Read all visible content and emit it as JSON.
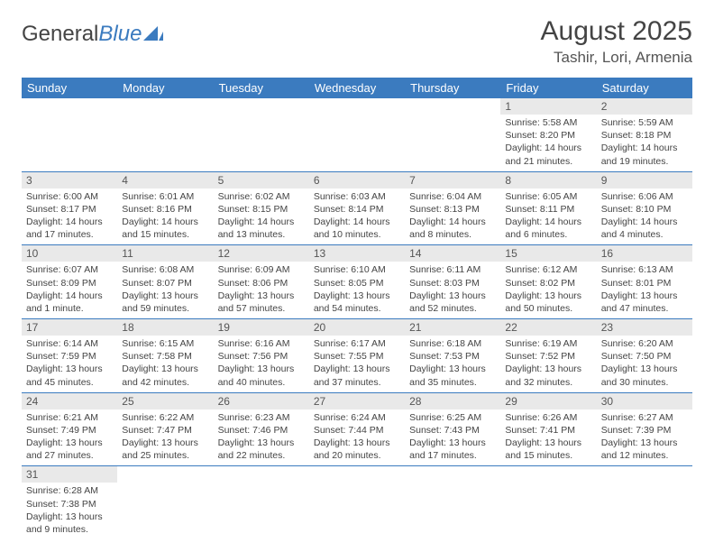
{
  "logo": {
    "text1": "General",
    "text2": "Blue"
  },
  "title": "August 2025",
  "location": "Tashir, Lori, Armenia",
  "colors": {
    "accent": "#3b7bbf",
    "daynum_bg": "#e9e9e9"
  },
  "day_headers": [
    "Sunday",
    "Monday",
    "Tuesday",
    "Wednesday",
    "Thursday",
    "Friday",
    "Saturday"
  ],
  "weeks": [
    [
      {
        "n": "",
        "sr": "",
        "ss": "",
        "dl": ""
      },
      {
        "n": "",
        "sr": "",
        "ss": "",
        "dl": ""
      },
      {
        "n": "",
        "sr": "",
        "ss": "",
        "dl": ""
      },
      {
        "n": "",
        "sr": "",
        "ss": "",
        "dl": ""
      },
      {
        "n": "",
        "sr": "",
        "ss": "",
        "dl": ""
      },
      {
        "n": "1",
        "sr": "Sunrise: 5:58 AM",
        "ss": "Sunset: 8:20 PM",
        "dl": "Daylight: 14 hours and 21 minutes."
      },
      {
        "n": "2",
        "sr": "Sunrise: 5:59 AM",
        "ss": "Sunset: 8:18 PM",
        "dl": "Daylight: 14 hours and 19 minutes."
      }
    ],
    [
      {
        "n": "3",
        "sr": "Sunrise: 6:00 AM",
        "ss": "Sunset: 8:17 PM",
        "dl": "Daylight: 14 hours and 17 minutes."
      },
      {
        "n": "4",
        "sr": "Sunrise: 6:01 AM",
        "ss": "Sunset: 8:16 PM",
        "dl": "Daylight: 14 hours and 15 minutes."
      },
      {
        "n": "5",
        "sr": "Sunrise: 6:02 AM",
        "ss": "Sunset: 8:15 PM",
        "dl": "Daylight: 14 hours and 13 minutes."
      },
      {
        "n": "6",
        "sr": "Sunrise: 6:03 AM",
        "ss": "Sunset: 8:14 PM",
        "dl": "Daylight: 14 hours and 10 minutes."
      },
      {
        "n": "7",
        "sr": "Sunrise: 6:04 AM",
        "ss": "Sunset: 8:13 PM",
        "dl": "Daylight: 14 hours and 8 minutes."
      },
      {
        "n": "8",
        "sr": "Sunrise: 6:05 AM",
        "ss": "Sunset: 8:11 PM",
        "dl": "Daylight: 14 hours and 6 minutes."
      },
      {
        "n": "9",
        "sr": "Sunrise: 6:06 AM",
        "ss": "Sunset: 8:10 PM",
        "dl": "Daylight: 14 hours and 4 minutes."
      }
    ],
    [
      {
        "n": "10",
        "sr": "Sunrise: 6:07 AM",
        "ss": "Sunset: 8:09 PM",
        "dl": "Daylight: 14 hours and 1 minute."
      },
      {
        "n": "11",
        "sr": "Sunrise: 6:08 AM",
        "ss": "Sunset: 8:07 PM",
        "dl": "Daylight: 13 hours and 59 minutes."
      },
      {
        "n": "12",
        "sr": "Sunrise: 6:09 AM",
        "ss": "Sunset: 8:06 PM",
        "dl": "Daylight: 13 hours and 57 minutes."
      },
      {
        "n": "13",
        "sr": "Sunrise: 6:10 AM",
        "ss": "Sunset: 8:05 PM",
        "dl": "Daylight: 13 hours and 54 minutes."
      },
      {
        "n": "14",
        "sr": "Sunrise: 6:11 AM",
        "ss": "Sunset: 8:03 PM",
        "dl": "Daylight: 13 hours and 52 minutes."
      },
      {
        "n": "15",
        "sr": "Sunrise: 6:12 AM",
        "ss": "Sunset: 8:02 PM",
        "dl": "Daylight: 13 hours and 50 minutes."
      },
      {
        "n": "16",
        "sr": "Sunrise: 6:13 AM",
        "ss": "Sunset: 8:01 PM",
        "dl": "Daylight: 13 hours and 47 minutes."
      }
    ],
    [
      {
        "n": "17",
        "sr": "Sunrise: 6:14 AM",
        "ss": "Sunset: 7:59 PM",
        "dl": "Daylight: 13 hours and 45 minutes."
      },
      {
        "n": "18",
        "sr": "Sunrise: 6:15 AM",
        "ss": "Sunset: 7:58 PM",
        "dl": "Daylight: 13 hours and 42 minutes."
      },
      {
        "n": "19",
        "sr": "Sunrise: 6:16 AM",
        "ss": "Sunset: 7:56 PM",
        "dl": "Daylight: 13 hours and 40 minutes."
      },
      {
        "n": "20",
        "sr": "Sunrise: 6:17 AM",
        "ss": "Sunset: 7:55 PM",
        "dl": "Daylight: 13 hours and 37 minutes."
      },
      {
        "n": "21",
        "sr": "Sunrise: 6:18 AM",
        "ss": "Sunset: 7:53 PM",
        "dl": "Daylight: 13 hours and 35 minutes."
      },
      {
        "n": "22",
        "sr": "Sunrise: 6:19 AM",
        "ss": "Sunset: 7:52 PM",
        "dl": "Daylight: 13 hours and 32 minutes."
      },
      {
        "n": "23",
        "sr": "Sunrise: 6:20 AM",
        "ss": "Sunset: 7:50 PM",
        "dl": "Daylight: 13 hours and 30 minutes."
      }
    ],
    [
      {
        "n": "24",
        "sr": "Sunrise: 6:21 AM",
        "ss": "Sunset: 7:49 PM",
        "dl": "Daylight: 13 hours and 27 minutes."
      },
      {
        "n": "25",
        "sr": "Sunrise: 6:22 AM",
        "ss": "Sunset: 7:47 PM",
        "dl": "Daylight: 13 hours and 25 minutes."
      },
      {
        "n": "26",
        "sr": "Sunrise: 6:23 AM",
        "ss": "Sunset: 7:46 PM",
        "dl": "Daylight: 13 hours and 22 minutes."
      },
      {
        "n": "27",
        "sr": "Sunrise: 6:24 AM",
        "ss": "Sunset: 7:44 PM",
        "dl": "Daylight: 13 hours and 20 minutes."
      },
      {
        "n": "28",
        "sr": "Sunrise: 6:25 AM",
        "ss": "Sunset: 7:43 PM",
        "dl": "Daylight: 13 hours and 17 minutes."
      },
      {
        "n": "29",
        "sr": "Sunrise: 6:26 AM",
        "ss": "Sunset: 7:41 PM",
        "dl": "Daylight: 13 hours and 15 minutes."
      },
      {
        "n": "30",
        "sr": "Sunrise: 6:27 AM",
        "ss": "Sunset: 7:39 PM",
        "dl": "Daylight: 13 hours and 12 minutes."
      }
    ],
    [
      {
        "n": "31",
        "sr": "Sunrise: 6:28 AM",
        "ss": "Sunset: 7:38 PM",
        "dl": "Daylight: 13 hours and 9 minutes."
      },
      {
        "n": "",
        "sr": "",
        "ss": "",
        "dl": ""
      },
      {
        "n": "",
        "sr": "",
        "ss": "",
        "dl": ""
      },
      {
        "n": "",
        "sr": "",
        "ss": "",
        "dl": ""
      },
      {
        "n": "",
        "sr": "",
        "ss": "",
        "dl": ""
      },
      {
        "n": "",
        "sr": "",
        "ss": "",
        "dl": ""
      },
      {
        "n": "",
        "sr": "",
        "ss": "",
        "dl": ""
      }
    ]
  ]
}
